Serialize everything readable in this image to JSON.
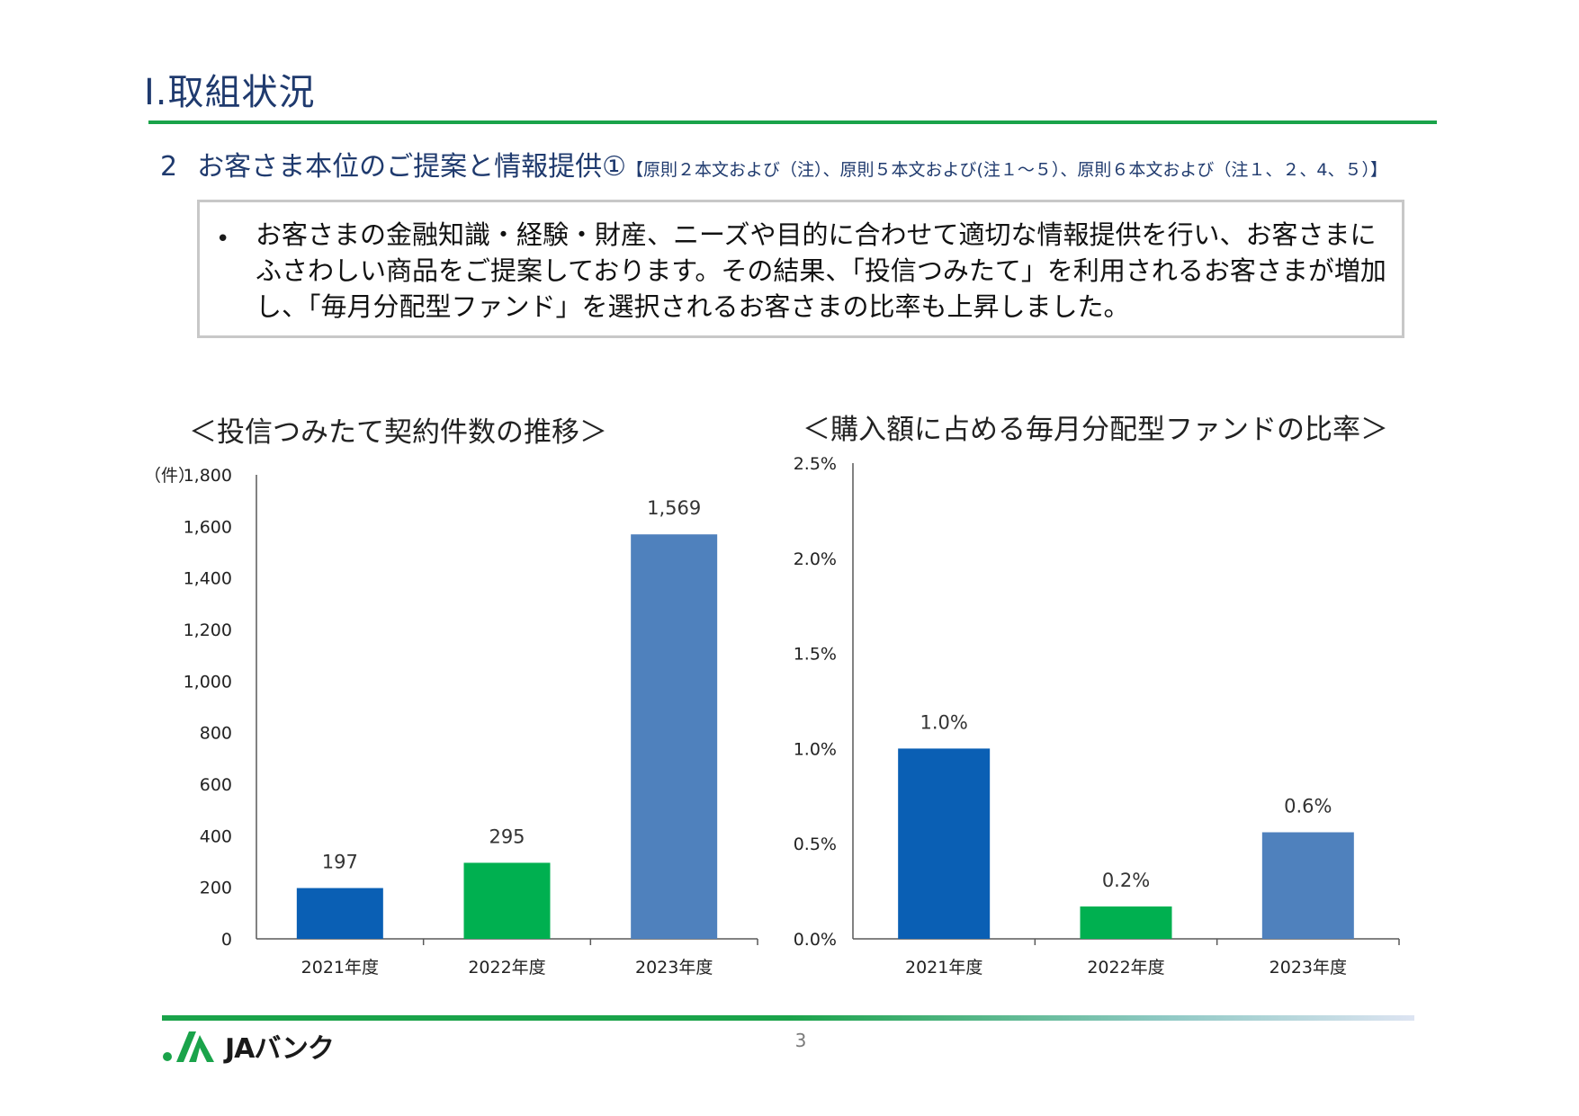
{
  "page": {
    "title": "Ⅰ.取組状況",
    "section_number": "2",
    "section_title": "お客さま本位のご提案と情報提供①",
    "section_reference": "【原則２本文および（注）、原則５本文および(注１～５）、原則６本文および（注１、２、4、５）】",
    "page_number": "3"
  },
  "summary": {
    "bullet": "•",
    "text": "お客さまの金融知識・経験・財産、ニーズや目的に合わせて適切な情報提供を行い、お客さまにふさわしい商品をご提案しております。その結果、「投信つみたて」を利用されるお客さまが増加し、「毎月分配型ファンド」を選択されるお客さまの比率も上昇しました。"
  },
  "footer": {
    "logo_text": "JAバンク",
    "logo_icon": "ja-bank-logo-icon"
  },
  "colors": {
    "navy": "#1f3a6e",
    "green": "#1aa34a",
    "bar_2021": "#0a5fb4",
    "bar_2022": "#00b050",
    "bar_2023": "#4f81bd"
  },
  "chart_data": [
    {
      "type": "bar",
      "title": "＜投信つみたて契約件数の推移＞",
      "unit_label": "（件）",
      "categories": [
        "2021年度",
        "2022年度",
        "2023年度"
      ],
      "values": [
        197,
        295,
        1569
      ],
      "data_labels": [
        "197",
        "295",
        "1,569"
      ],
      "bar_colors": [
        "#0a5fb4",
        "#00b050",
        "#4f81bd"
      ],
      "ylim": [
        0,
        1800
      ],
      "yticks": [
        0,
        200,
        400,
        600,
        800,
        1000,
        1200,
        1400,
        1600,
        1800
      ],
      "ytick_labels": [
        "0",
        "200",
        "400",
        "600",
        "800",
        "1,000",
        "1,200",
        "1,400",
        "1,600",
        "1,800"
      ],
      "grid": false,
      "legend": "none"
    },
    {
      "type": "bar",
      "title": "＜購入額に占める毎月分配型ファンドの比率＞",
      "unit_label": "",
      "categories": [
        "2021年度",
        "2022年度",
        "2023年度"
      ],
      "values": [
        1.0,
        0.17,
        0.56
      ],
      "data_labels": [
        "1.0%",
        "0.2%",
        "0.6%"
      ],
      "bar_colors": [
        "#0a5fb4",
        "#00b050",
        "#4f81bd"
      ],
      "ylim": [
        0,
        2.5
      ],
      "yticks": [
        0,
        0.5,
        1.0,
        1.5,
        2.0,
        2.5
      ],
      "ytick_labels": [
        "0.0%",
        "0.5%",
        "1.0%",
        "1.5%",
        "2.0%",
        "2.5%"
      ],
      "grid": false,
      "legend": "none"
    }
  ]
}
